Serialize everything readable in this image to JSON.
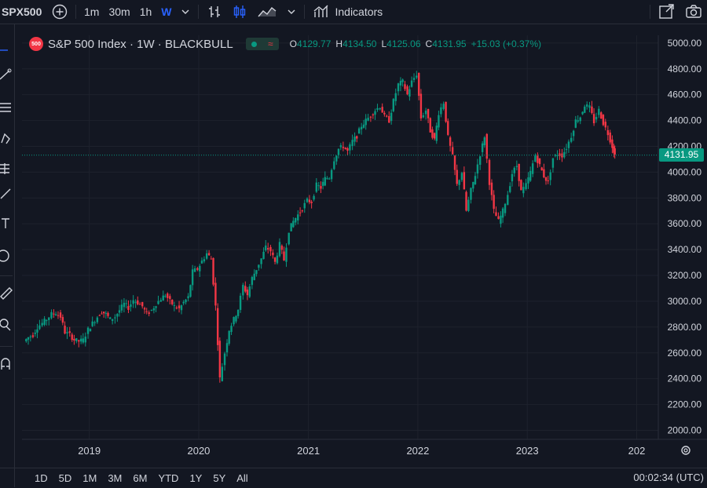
{
  "toolbar": {
    "symbol": "SPX500",
    "intervals": [
      "1m",
      "30m",
      "1h",
      "W"
    ],
    "active_interval": "W",
    "indicators_label": "Indicators"
  },
  "legend": {
    "badge": "500",
    "title": "S&P 500 Index · 1W · BLACKBULL",
    "open_label": "O",
    "open": "4129.77",
    "high_label": "H",
    "high": "4134.50",
    "low_label": "L",
    "low": "4125.06",
    "close_label": "C",
    "close": "4131.95",
    "change": "+15.03 (+0.37%)"
  },
  "last_price_tag": "4131.95",
  "bottom": {
    "ranges": [
      "1D",
      "5D",
      "1M",
      "3M",
      "6M",
      "YTD",
      "1Y",
      "5Y",
      "All"
    ],
    "time": "00:02:34 (UTC)"
  },
  "colors": {
    "up": "#089981",
    "down": "#f23645",
    "background": "#131722",
    "grid": "#1e222d"
  },
  "chart_data": {
    "type": "candlestick",
    "title": "S&P 500 Index · 1W · BLACKBULL",
    "y_ticks": [
      2000,
      2200,
      2400,
      2600,
      2800,
      3000,
      3200,
      3400,
      3600,
      3800,
      4000,
      4200,
      4400,
      4600,
      4800,
      5000
    ],
    "y_tick_labels": [
      "2000.00",
      "2200.00",
      "2400.00",
      "2600.00",
      "2800.00",
      "3000.00",
      "3200.00",
      "3400.00",
      "3600.00",
      "3800.00",
      "4000.00",
      "4200.00",
      "4400.00",
      "4600.00",
      "4800.00",
      "5000.00"
    ],
    "ylim": [
      1930,
      5060
    ],
    "x_ticks": [
      "2019",
      "2020",
      "2021",
      "2022",
      "2023",
      "202"
    ],
    "x_tick_dates": [
      "2019-01-01",
      "2020-01-01",
      "2021-01-01",
      "2022-01-01",
      "2023-01-01",
      "2024-01-01"
    ],
    "x_range": [
      "2018-06-01",
      "2024-01-05"
    ],
    "price_line": 4131.95,
    "grid": true,
    "candles": [
      {
        "date": "2018-06-01",
        "close": 2690
      },
      {
        "date": "2018-06-15",
        "close": 2720
      },
      {
        "date": "2018-07-01",
        "close": 2740
      },
      {
        "date": "2018-07-15",
        "close": 2800
      },
      {
        "date": "2018-08-01",
        "close": 2830
      },
      {
        "date": "2018-08-15",
        "close": 2860
      },
      {
        "date": "2018-09-01",
        "close": 2900
      },
      {
        "date": "2018-09-15",
        "close": 2910
      },
      {
        "date": "2018-10-01",
        "close": 2880
      },
      {
        "date": "2018-10-15",
        "close": 2760
      },
      {
        "date": "2018-11-01",
        "close": 2740
      },
      {
        "date": "2018-11-15",
        "close": 2700
      },
      {
        "date": "2018-12-01",
        "close": 2690
      },
      {
        "date": "2018-12-15",
        "close": 2700
      },
      {
        "date": "2019-01-01",
        "close": 2780
      },
      {
        "date": "2019-01-15",
        "close": 2830
      },
      {
        "date": "2019-02-01",
        "close": 2880
      },
      {
        "date": "2019-02-15",
        "close": 2920
      },
      {
        "date": "2019-03-01",
        "close": 2900
      },
      {
        "date": "2019-03-15",
        "close": 2860
      },
      {
        "date": "2019-04-01",
        "close": 2880
      },
      {
        "date": "2019-04-15",
        "close": 2930
      },
      {
        "date": "2019-05-01",
        "close": 2980
      },
      {
        "date": "2019-05-15",
        "close": 2950
      },
      {
        "date": "2019-06-01",
        "close": 3010
      },
      {
        "date": "2019-06-15",
        "close": 2990
      },
      {
        "date": "2019-07-01",
        "close": 2960
      },
      {
        "date": "2019-07-15",
        "close": 2900
      },
      {
        "date": "2019-08-01",
        "close": 2930
      },
      {
        "date": "2019-08-15",
        "close": 2980
      },
      {
        "date": "2019-09-01",
        "close": 3020
      },
      {
        "date": "2019-09-15",
        "close": 3050
      },
      {
        "date": "2019-10-01",
        "close": 3000
      },
      {
        "date": "2019-10-15",
        "close": 2960
      },
      {
        "date": "2019-11-01",
        "close": 2940
      },
      {
        "date": "2019-11-15",
        "close": 2990
      },
      {
        "date": "2019-12-01",
        "close": 3030
      },
      {
        "date": "2019-12-15",
        "close": 3230
      },
      {
        "date": "2020-01-01",
        "close": 3250
      },
      {
        "date": "2020-01-15",
        "close": 3310
      },
      {
        "date": "2020-02-01",
        "close": 3370
      },
      {
        "date": "2020-02-15",
        "close": 3330
      },
      {
        "date": "2020-03-01",
        "close": 2960
      },
      {
        "date": "2020-03-15",
        "close": 2400
      },
      {
        "date": "2020-04-01",
        "close": 2600
      },
      {
        "date": "2020-04-15",
        "close": 2780
      },
      {
        "date": "2020-05-01",
        "close": 2860
      },
      {
        "date": "2020-05-15",
        "close": 2940
      },
      {
        "date": "2020-06-01",
        "close": 3120
      },
      {
        "date": "2020-06-15",
        "close": 3050
      },
      {
        "date": "2020-07-01",
        "close": 3180
      },
      {
        "date": "2020-07-15",
        "close": 3250
      },
      {
        "date": "2020-08-01",
        "close": 3330
      },
      {
        "date": "2020-08-15",
        "close": 3420
      },
      {
        "date": "2020-09-01",
        "close": 3390
      },
      {
        "date": "2020-09-15",
        "close": 3300
      },
      {
        "date": "2020-10-01",
        "close": 3440
      },
      {
        "date": "2020-10-15",
        "close": 3320
      },
      {
        "date": "2020-11-01",
        "close": 3550
      },
      {
        "date": "2020-11-15",
        "close": 3620
      },
      {
        "date": "2020-12-01",
        "close": 3670
      },
      {
        "date": "2020-12-15",
        "close": 3720
      },
      {
        "date": "2021-01-01",
        "close": 3780
      },
      {
        "date": "2021-01-15",
        "close": 3770
      },
      {
        "date": "2021-02-01",
        "close": 3900
      },
      {
        "date": "2021-02-15",
        "close": 3880
      },
      {
        "date": "2021-03-01",
        "close": 3950
      },
      {
        "date": "2021-03-15",
        "close": 3960
      },
      {
        "date": "2021-04-01",
        "close": 4100
      },
      {
        "date": "2021-04-15",
        "close": 4180
      },
      {
        "date": "2021-05-01",
        "close": 4200
      },
      {
        "date": "2021-05-15",
        "close": 4160
      },
      {
        "date": "2021-06-01",
        "close": 4240
      },
      {
        "date": "2021-06-15",
        "close": 4280
      },
      {
        "date": "2021-07-01",
        "close": 4360
      },
      {
        "date": "2021-07-15",
        "close": 4400
      },
      {
        "date": "2021-08-01",
        "close": 4440
      },
      {
        "date": "2021-08-15",
        "close": 4480
      },
      {
        "date": "2021-09-01",
        "close": 4510
      },
      {
        "date": "2021-09-15",
        "close": 4430
      },
      {
        "date": "2021-10-01",
        "close": 4400
      },
      {
        "date": "2021-10-15",
        "close": 4550
      },
      {
        "date": "2021-11-01",
        "close": 4680
      },
      {
        "date": "2021-11-15",
        "close": 4700
      },
      {
        "date": "2021-12-01",
        "close": 4600
      },
      {
        "date": "2021-12-15",
        "close": 4700
      },
      {
        "date": "2022-01-01",
        "close": 4760
      },
      {
        "date": "2022-01-15",
        "close": 4420
      },
      {
        "date": "2022-02-01",
        "close": 4480
      },
      {
        "date": "2022-02-15",
        "close": 4320
      },
      {
        "date": "2022-03-01",
        "close": 4250
      },
      {
        "date": "2022-03-15",
        "close": 4460
      },
      {
        "date": "2022-04-01",
        "close": 4540
      },
      {
        "date": "2022-04-15",
        "close": 4270
      },
      {
        "date": "2022-05-01",
        "close": 4120
      },
      {
        "date": "2022-05-15",
        "close": 3900
      },
      {
        "date": "2022-06-01",
        "close": 4000
      },
      {
        "date": "2022-06-15",
        "close": 3700
      },
      {
        "date": "2022-07-01",
        "close": 3860
      },
      {
        "date": "2022-07-15",
        "close": 3980
      },
      {
        "date": "2022-08-01",
        "close": 4140
      },
      {
        "date": "2022-08-15",
        "close": 4280
      },
      {
        "date": "2022-09-01",
        "close": 3920
      },
      {
        "date": "2022-09-15",
        "close": 3700
      },
      {
        "date": "2022-10-01",
        "close": 3620
      },
      {
        "date": "2022-10-15",
        "close": 3700
      },
      {
        "date": "2022-11-01",
        "close": 3830
      },
      {
        "date": "2022-11-15",
        "close": 3990
      },
      {
        "date": "2022-12-01",
        "close": 4050
      },
      {
        "date": "2022-12-15",
        "close": 3850
      },
      {
        "date": "2023-01-01",
        "close": 3900
      },
      {
        "date": "2023-01-15",
        "close": 4000
      },
      {
        "date": "2023-02-01",
        "close": 4130
      },
      {
        "date": "2023-02-15",
        "close": 4050
      },
      {
        "date": "2023-03-01",
        "close": 3970
      },
      {
        "date": "2023-03-15",
        "close": 3920
      },
      {
        "date": "2023-04-01",
        "close": 4110
      },
      {
        "date": "2023-04-15",
        "close": 4140
      },
      {
        "date": "2023-05-01",
        "close": 4130
      },
      {
        "date": "2023-05-15",
        "close": 4190
      },
      {
        "date": "2023-06-01",
        "close": 4280
      },
      {
        "date": "2023-06-15",
        "close": 4400
      },
      {
        "date": "2023-07-01",
        "close": 4430
      },
      {
        "date": "2023-07-15",
        "close": 4520
      },
      {
        "date": "2023-08-01",
        "close": 4500
      },
      {
        "date": "2023-08-15",
        "close": 4390
      },
      {
        "date": "2023-09-01",
        "close": 4480
      },
      {
        "date": "2023-09-15",
        "close": 4380
      },
      {
        "date": "2023-10-01",
        "close": 4300
      },
      {
        "date": "2023-10-15",
        "close": 4200
      },
      {
        "date": "2023-10-22",
        "close": 4131.95
      }
    ]
  }
}
